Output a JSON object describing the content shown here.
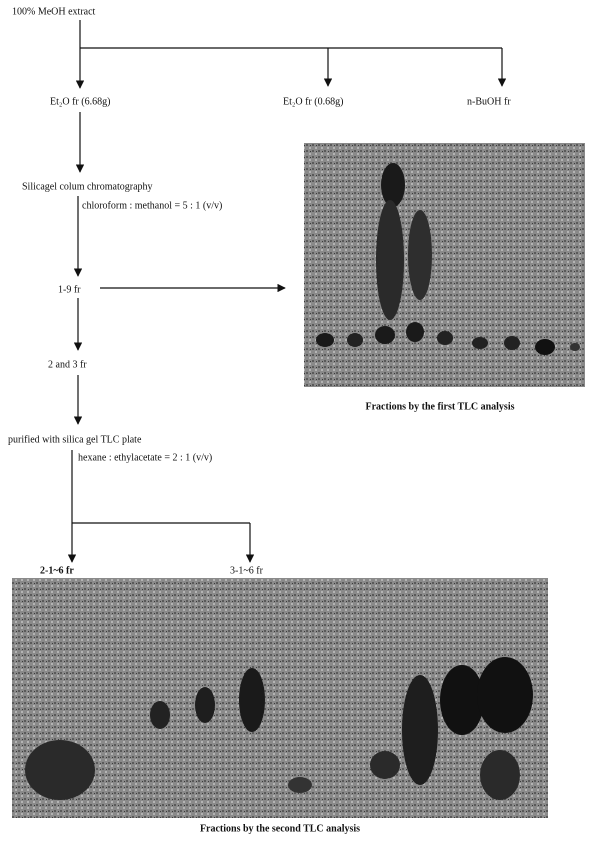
{
  "nodes": [
    {
      "label": "100% MeOH extract"
    },
    {
      "label": "Et₂O fr (6.68g)"
    },
    {
      "label": "Et₂O fr (0.68g)"
    },
    {
      "label": "n-BuOH fr"
    },
    {
      "label": "Silicagel colum chromatography",
      "note": "chloroform : methanol = 5 : 1 (v/v)"
    },
    {
      "label": "1-9 fr"
    },
    {
      "label": "2 and 3 fr"
    },
    {
      "label": "purified with silica gel TLC plate",
      "note": "hexane : ethylacetate = 2 : 1 (v/v)"
    },
    {
      "label": "2-1~6 fr"
    },
    {
      "label": "3-1~6 fr"
    }
  ],
  "figures": [
    {
      "caption": "Fractions by the first TLC analysis"
    },
    {
      "caption": "Fractions by the second TLC analysis"
    }
  ]
}
